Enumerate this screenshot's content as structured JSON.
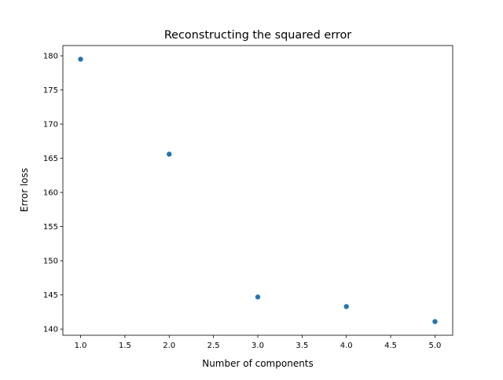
{
  "chart_data": {
    "type": "scatter",
    "title": "Reconstructing the squared error",
    "xlabel": "Number of components",
    "ylabel": "Error loss",
    "xlim": [
      0.8,
      5.2
    ],
    "ylim": [
      139.1,
      181.5
    ],
    "xticks": [
      1.0,
      1.5,
      2.0,
      2.5,
      3.0,
      3.5,
      4.0,
      4.5,
      5.0
    ],
    "xtick_labels": [
      "1.0",
      "1.5",
      "2.0",
      "2.5",
      "3.0",
      "3.5",
      "4.0",
      "4.5",
      "5.0"
    ],
    "yticks": [
      140,
      145,
      150,
      155,
      160,
      165,
      170,
      175,
      180
    ],
    "ytick_labels": [
      "140",
      "145",
      "150",
      "155",
      "160",
      "165",
      "170",
      "175",
      "180"
    ],
    "grid": false,
    "series": [
      {
        "color": "#1f77b4",
        "x": [
          1,
          2,
          3,
          4,
          5
        ],
        "y": [
          179.5,
          165.6,
          144.7,
          143.3,
          141.1
        ]
      }
    ]
  }
}
